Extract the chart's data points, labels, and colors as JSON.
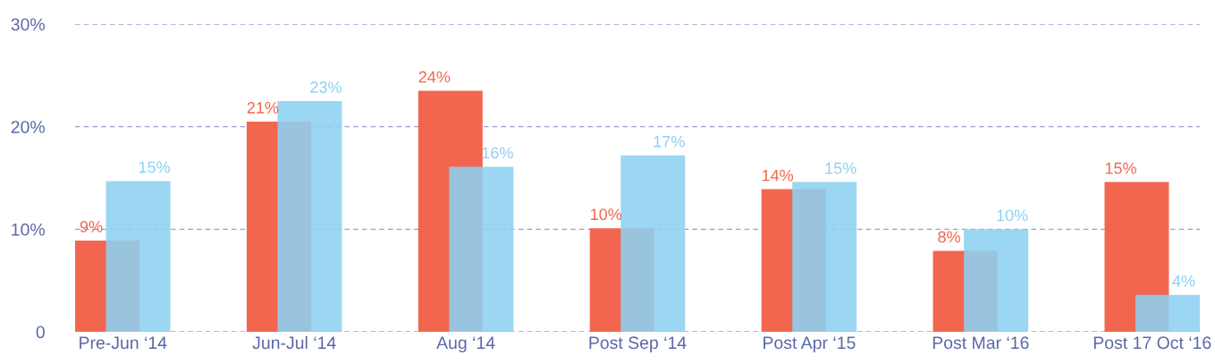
{
  "chart_data": {
    "type": "bar",
    "categories": [
      "Pre-Jun ‘14",
      "Jun-Jul ‘14",
      "Aug ‘14",
      "Post Sep ‘14",
      "Post Apr ‘15",
      "Post Mar ‘16",
      "Post 17 Oct ‘16"
    ],
    "series": [
      {
        "color": "#f26650",
        "values": [
          8.9,
          20.5,
          23.5,
          10.1,
          13.9,
          7.9,
          14.6
        ],
        "value_labels": [
          "9%",
          "21%",
          "24%",
          "10%",
          "14%",
          "8%",
          "15%"
        ]
      },
      {
        "color": "#8dd0f0",
        "values": [
          14.7,
          22.5,
          16.1,
          17.2,
          14.6,
          10.0,
          3.6
        ],
        "value_labels": [
          "15%",
          "23%",
          "16%",
          "17%",
          "15%",
          "10%",
          "4%"
        ]
      }
    ],
    "ylim": [
      0,
      30
    ],
    "yticks": [
      {
        "value": 0,
        "label": "0"
      },
      {
        "value": 10,
        "label": "10%"
      },
      {
        "value": 20,
        "label": "20%"
      },
      {
        "value": 30,
        "label": "30%"
      }
    ],
    "grid": "y"
  }
}
